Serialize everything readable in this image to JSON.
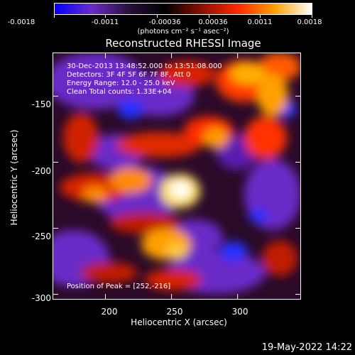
{
  "colorbar": {
    "tick_labels": [
      "-0.0018",
      "-0.0011",
      "-0.00036",
      "0.00036",
      "0.0011",
      "0.0018"
    ],
    "units": "(photons cm⁻² s⁻¹ asec⁻²)",
    "colors": [
      "#0000ff",
      "#6a2cc8",
      "#2a1040",
      "#000000",
      "#8a1000",
      "#ff2a00",
      "#ffa000",
      "#ffffff"
    ]
  },
  "title": "Reconstructed RHESSI Image",
  "annotations": {
    "time_range": "30-Dec-2013 13:48:52.000 to 13:51:08.000",
    "detectors": "Detectors: 3F 4F 5F 6F 7F 8F, Att 0",
    "energy_range": "Energy Range: 12.0 - 25.0 keV",
    "clean_counts": "Clean    Total counts: 1.33E+04",
    "peak_position": "Position of Peak = [252,-216]"
  },
  "chart_data": {
    "type": "heatmap",
    "title": "Reconstructed RHESSI Image",
    "xlabel": "Heliocentric X (arcsec)",
    "ylabel": "Heliocentric Y (arcsec)",
    "xlim": [
      160,
      348
    ],
    "ylim": [
      -304,
      -117
    ],
    "xticks": [
      200,
      250,
      300
    ],
    "yticks": [
      -150,
      -200,
      -250,
      -300
    ],
    "colorbar_range": [
      -0.0018,
      0.0018
    ],
    "peak": [
      252,
      -216
    ]
  },
  "axis_text": {
    "xticks": [
      "200",
      "250",
      "300"
    ],
    "yticks": [
      "-150",
      "-200",
      "-250",
      "-300"
    ],
    "xlabel": "Heliocentric X (arcsec)",
    "ylabel": "Heliocentric Y (arcsec)"
  },
  "datestamp": "19-May-2022 14:22"
}
